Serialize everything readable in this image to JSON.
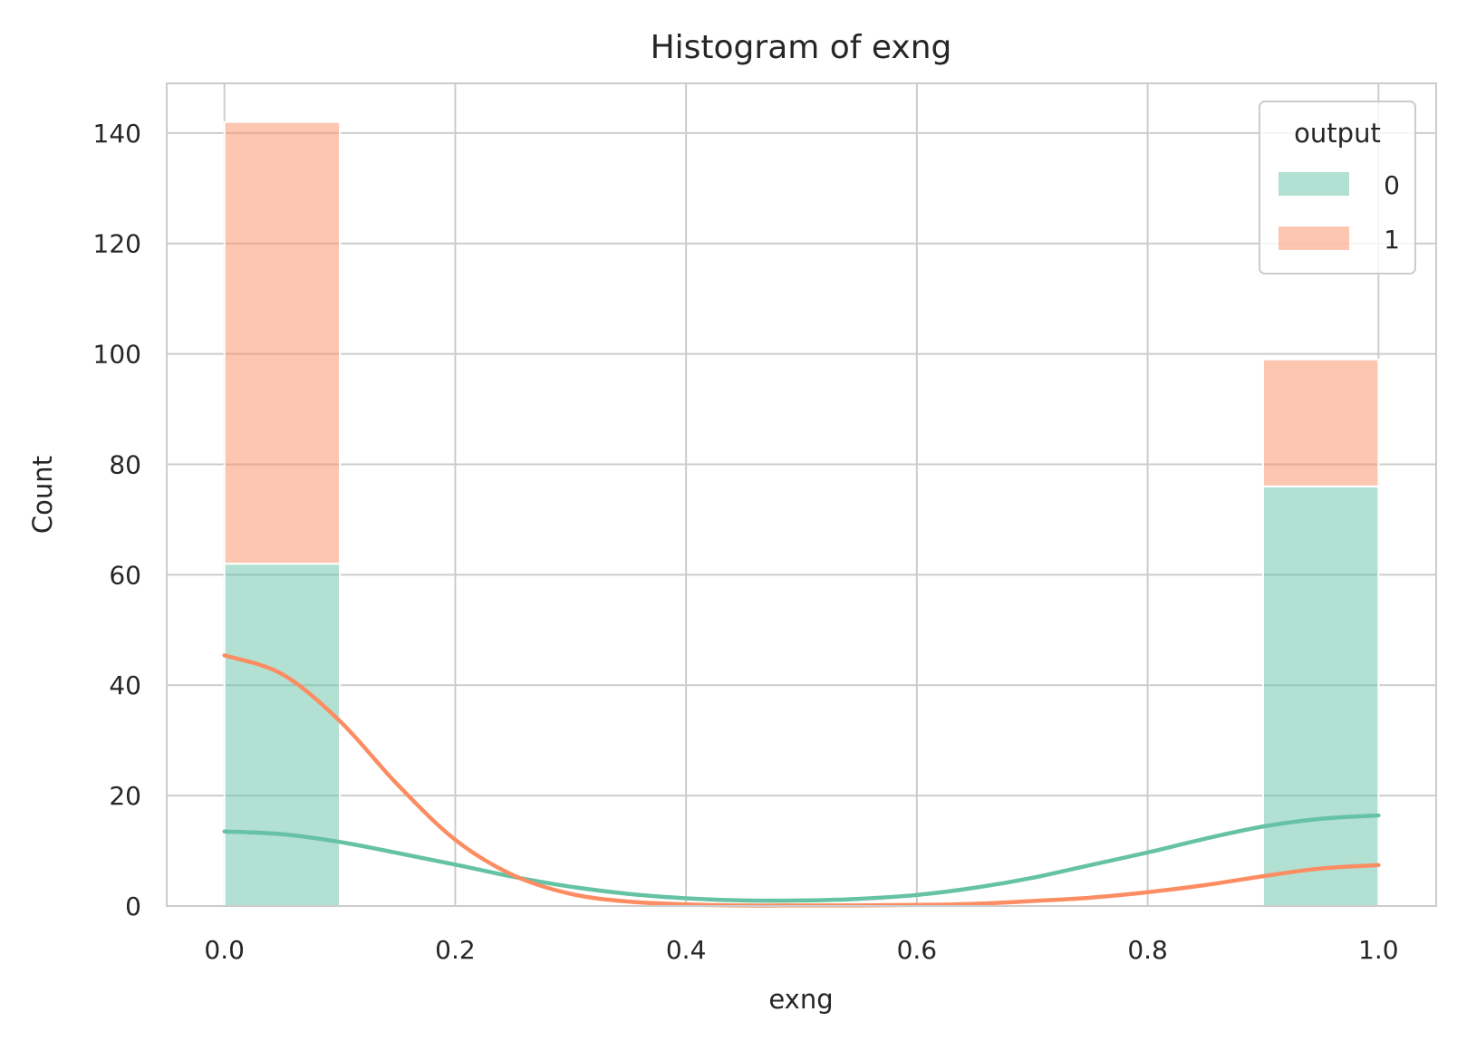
{
  "chart_data": {
    "type": "bar",
    "title": "Histogram of exng",
    "xlabel": "exng",
    "ylabel": "Count",
    "xlim": [
      -0.05,
      1.05
    ],
    "ylim": [
      0,
      149
    ],
    "xticks": [
      "0.0",
      "0.2",
      "0.4",
      "0.6",
      "0.8",
      "1.0"
    ],
    "yticks": [
      "0",
      "20",
      "40",
      "60",
      "80",
      "100",
      "120",
      "140"
    ],
    "grid": true,
    "multiple": "stack",
    "legend": {
      "title": "output",
      "placement": "top-right"
    },
    "bins": [
      [
        0.0,
        0.1
      ],
      [
        0.9,
        1.0
      ]
    ],
    "series": [
      {
        "name": "0",
        "color": "#66c2a5",
        "values": [
          62,
          76
        ]
      },
      {
        "name": "1",
        "color": "#fc8d62",
        "values": [
          80,
          23
        ]
      }
    ],
    "kde": [
      {
        "series": "0",
        "color": "#66c2a5",
        "x": [
          0.0,
          0.05,
          0.1,
          0.15,
          0.2,
          0.25,
          0.3,
          0.35,
          0.4,
          0.45,
          0.5,
          0.55,
          0.6,
          0.65,
          0.7,
          0.75,
          0.8,
          0.85,
          0.9,
          0.95,
          1.0
        ],
        "y": [
          13.5,
          13.0,
          11.6,
          9.6,
          7.5,
          5.3,
          3.5,
          2.2,
          1.4,
          1.0,
          1.0,
          1.3,
          2.0,
          3.3,
          5.1,
          7.4,
          9.7,
          12.2,
          14.4,
          15.8,
          16.4
        ]
      },
      {
        "series": "1",
        "color": "#fc8d62",
        "x": [
          0.0,
          0.05,
          0.1,
          0.15,
          0.2,
          0.25,
          0.3,
          0.35,
          0.4,
          0.45,
          0.5,
          0.55,
          0.6,
          0.65,
          0.7,
          0.75,
          0.8,
          0.85,
          0.9,
          0.95,
          1.0
        ],
        "y": [
          45.4,
          42.0,
          33.5,
          22.0,
          12.0,
          5.6,
          2.2,
          0.8,
          0.3,
          0.1,
          0.1,
          0.1,
          0.2,
          0.4,
          0.9,
          1.5,
          2.5,
          3.8,
          5.4,
          6.8,
          7.4
        ]
      }
    ]
  }
}
